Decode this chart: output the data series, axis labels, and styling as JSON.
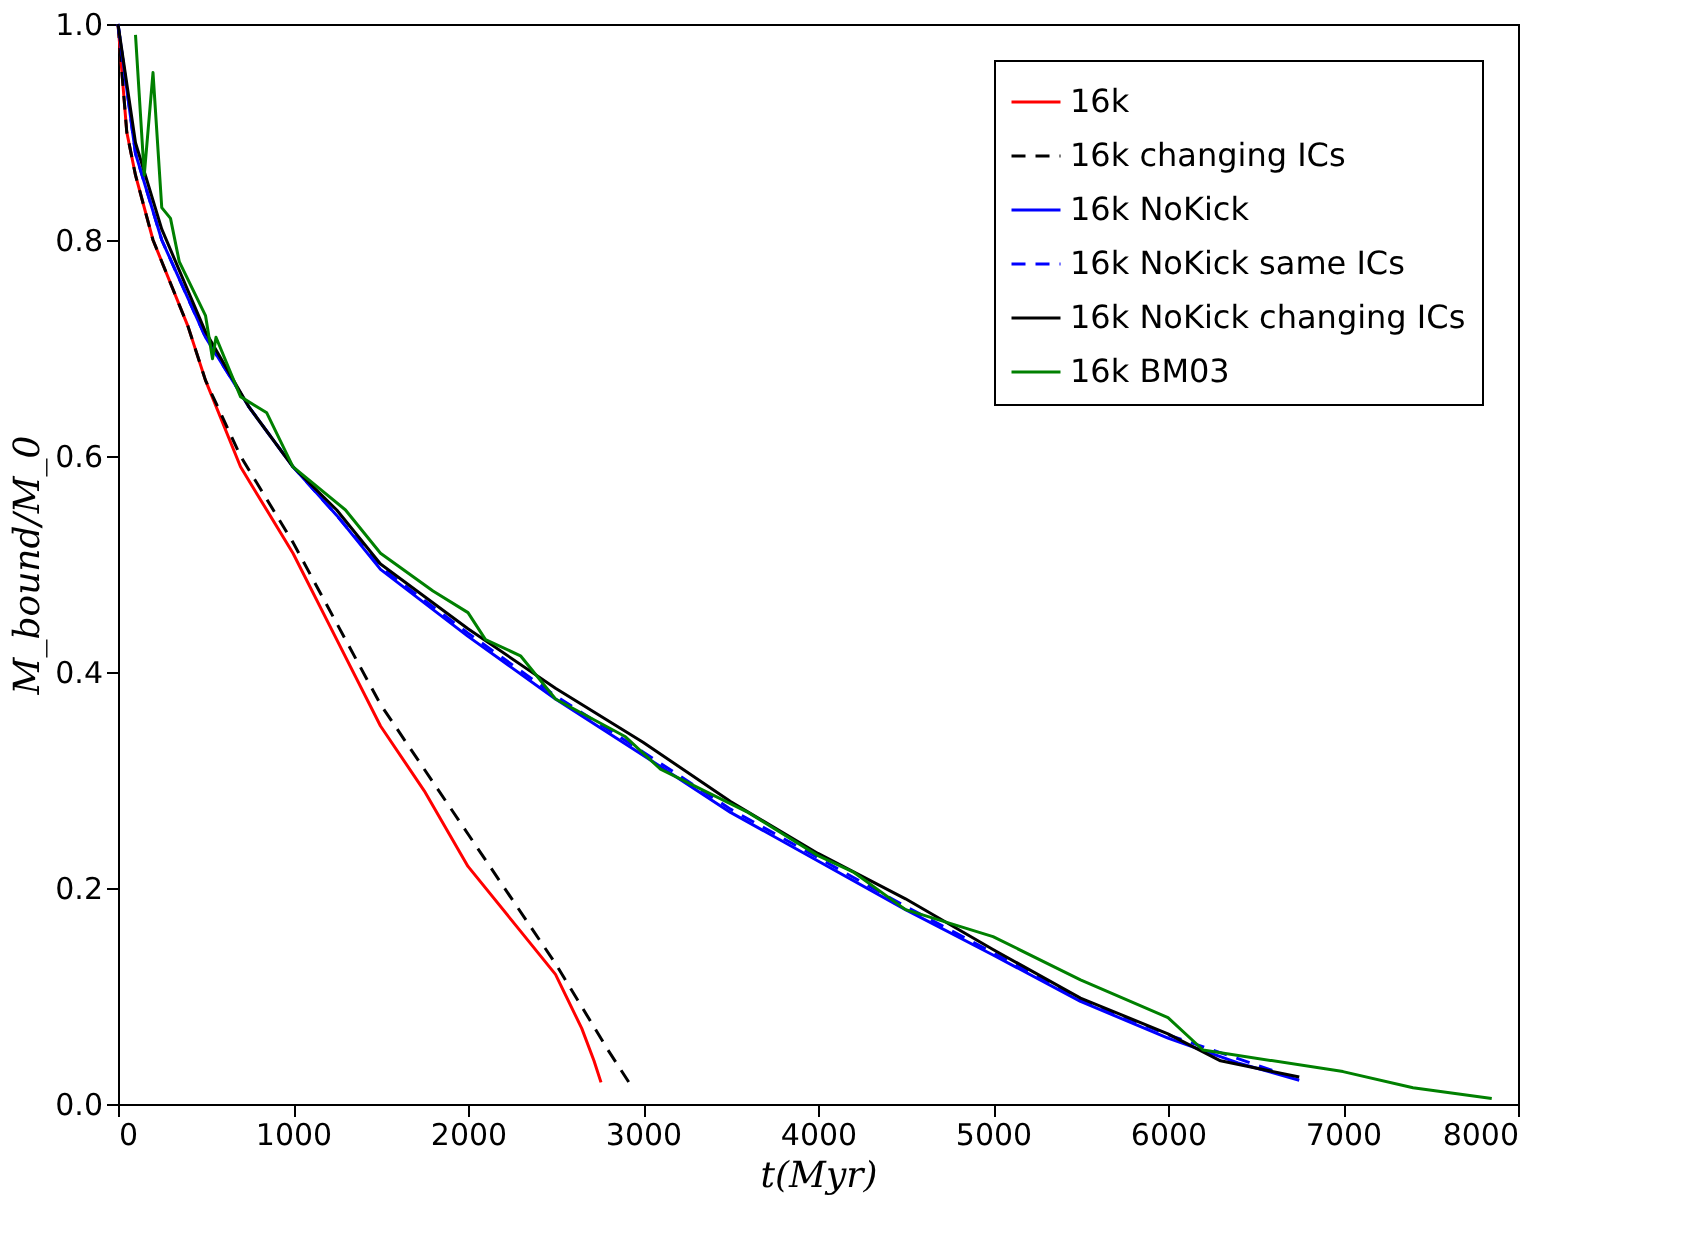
{
  "chart_data": {
    "type": "line",
    "xlabel": "t(Myr)",
    "ylabel": "M_bound/M_0",
    "xlim": [
      0,
      8000
    ],
    "ylim": [
      0,
      1.0
    ],
    "xticks": [
      0,
      1000,
      2000,
      3000,
      4000,
      5000,
      6000,
      7000,
      8000
    ],
    "yticks": [
      {
        "value": 0,
        "label": "0.0"
      },
      0.2,
      0.4,
      0.6,
      0.8,
      {
        "value": 1.0,
        "label": "1.0"
      }
    ],
    "grid": false,
    "legend": "top right",
    "marker": "none",
    "series": [
      {
        "name": "16k",
        "color": "#ff0000",
        "line_style": "solid",
        "x": [
          0,
          50,
          100,
          200,
          300,
          400,
          500,
          700,
          1000,
          1250,
          1500,
          1750,
          2000,
          2250,
          2500,
          2650,
          2720,
          2760
        ],
        "values": [
          1.0,
          0.9,
          0.86,
          0.8,
          0.76,
          0.72,
          0.67,
          0.59,
          0.51,
          0.43,
          0.35,
          0.29,
          0.22,
          0.17,
          0.12,
          0.07,
          0.04,
          0.02
        ]
      },
      {
        "name": "16k changing ICs",
        "color": "#000000",
        "line_style": "dashed",
        "x": [
          0,
          50,
          100,
          200,
          300,
          400,
          500,
          700,
          1000,
          1500,
          2000,
          2500,
          2800,
          2920
        ],
        "values": [
          1.0,
          0.9,
          0.86,
          0.8,
          0.76,
          0.72,
          0.67,
          0.6,
          0.52,
          0.37,
          0.25,
          0.13,
          0.05,
          0.02
        ]
      },
      {
        "name": "16k NoKick",
        "color": "#0000ff",
        "line_style": "solid",
        "x": [
          0,
          100,
          250,
          500,
          750,
          1000,
          1250,
          1500,
          2000,
          2500,
          3000,
          3500,
          4000,
          4500,
          5000,
          5500,
          6000,
          6400,
          6750
        ],
        "values": [
          1.0,
          0.88,
          0.8,
          0.71,
          0.645,
          0.59,
          0.545,
          0.495,
          0.433,
          0.375,
          0.323,
          0.27,
          0.225,
          0.18,
          0.138,
          0.095,
          0.061,
          0.038,
          0.022
        ]
      },
      {
        "name": "16k NoKick same ICs",
        "color": "#0000ff",
        "line_style": "dashed",
        "x": [
          0,
          100,
          250,
          500,
          750,
          1000,
          1250,
          1500,
          2000,
          2500,
          3000,
          3500,
          4000,
          4500,
          5000,
          5500,
          6000,
          6400,
          6650
        ],
        "values": [
          1.0,
          0.88,
          0.8,
          0.71,
          0.645,
          0.59,
          0.545,
          0.497,
          0.436,
          0.378,
          0.326,
          0.273,
          0.228,
          0.183,
          0.14,
          0.097,
          0.064,
          0.042,
          0.028
        ]
      },
      {
        "name": "16k NoKick changing ICs",
        "color": "#000000",
        "line_style": "solid",
        "x": [
          0,
          100,
          250,
          500,
          750,
          1000,
          1250,
          1500,
          2000,
          2500,
          3000,
          3500,
          4000,
          4500,
          5000,
          5500,
          6000,
          6300,
          6750
        ],
        "values": [
          1.0,
          0.89,
          0.81,
          0.715,
          0.645,
          0.59,
          0.55,
          0.5,
          0.44,
          0.385,
          0.335,
          0.28,
          0.232,
          0.19,
          0.143,
          0.098,
          0.065,
          0.04,
          0.025
        ]
      },
      {
        "name": "16k BM03",
        "color": "#008000",
        "line_style": "solid",
        "x": [
          100,
          150,
          200,
          250,
          300,
          350,
          500,
          540,
          560,
          700,
          850,
          1000,
          1300,
          1500,
          1800,
          2000,
          2100,
          2300,
          2500,
          2900,
          3100,
          3600,
          4000,
          4200,
          4500,
          5000,
          5500,
          6000,
          6200,
          7000,
          7400,
          7850
        ],
        "values": [
          0.99,
          0.86,
          0.955,
          0.83,
          0.82,
          0.78,
          0.73,
          0.69,
          0.71,
          0.655,
          0.64,
          0.59,
          0.55,
          0.51,
          0.475,
          0.455,
          0.43,
          0.415,
          0.375,
          0.34,
          0.31,
          0.27,
          0.23,
          0.215,
          0.18,
          0.155,
          0.115,
          0.08,
          0.05,
          0.03,
          0.015,
          0.005
        ]
      }
    ]
  }
}
